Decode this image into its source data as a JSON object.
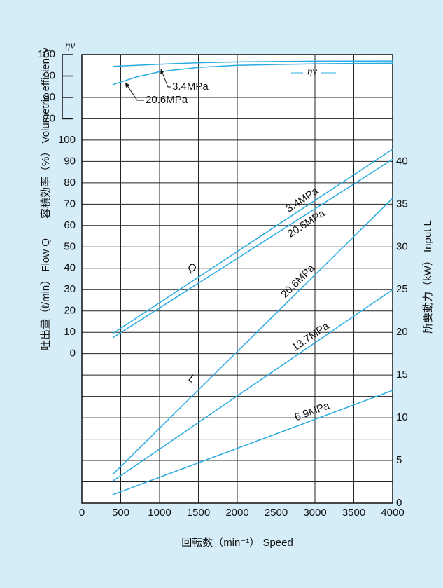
{
  "chart_data": {
    "type": "line",
    "x_label": "回転数（min⁻¹） Speed",
    "y_label": "吐出量（ℓ/min） Flow Q",
    "y2_label": "所要動力（kW） Input L",
    "y3_label": "容積効率（%） Volumetric efficiency",
    "annotations": [
      "ηv",
      "Q",
      "L"
    ],
    "xlim": [
      0,
      4000
    ],
    "xticks": [
      0,
      500,
      1000,
      1500,
      2000,
      2500,
      3000,
      3500,
      4000
    ],
    "ylim": [
      -70,
      140
    ],
    "yticks": [
      0,
      10,
      20,
      30,
      40,
      50,
      60,
      70,
      80,
      90,
      100
    ],
    "y2lim": [
      0,
      52.5
    ],
    "y2ticks": [
      0,
      5,
      10,
      15,
      20,
      25,
      30,
      35,
      40
    ],
    "y3lim": [
      -110,
      100
    ],
    "y3ticks": [
      70,
      80,
      90,
      100
    ],
    "grid": true,
    "series": [
      {
        "name": "3.4MPa",
        "color": "#29abe2",
        "axis": "y3",
        "x": [
          400,
          1000,
          1500,
          2000,
          3000,
          4000
        ],
        "values": [
          94.5,
          95.5,
          96.2,
          96.6,
          96.9,
          97
        ]
      },
      {
        "name": "20.6MPa",
        "color": "#29abe2",
        "axis": "y3",
        "x": [
          400,
          700,
          1000,
          1500,
          2000,
          3000,
          4000
        ],
        "values": [
          86,
          89.5,
          92,
          94,
          95,
          95.7,
          96
        ]
      },
      {
        "name": "3.4MPa",
        "color": "#29abe2",
        "axis": "y",
        "x": [
          400,
          4000
        ],
        "values": [
          9.5,
          95.7
        ]
      },
      {
        "name": "20.6MPa",
        "color": "#29abe2",
        "axis": "y",
        "x": [
          400,
          4000
        ],
        "values": [
          7.5,
          91
        ]
      },
      {
        "name": "20.6MPa",
        "color": "#29abe2",
        "axis": "y2",
        "x": [
          400,
          4000
        ],
        "values": [
          3.4,
          35.7
        ]
      },
      {
        "name": "13.7MPa",
        "color": "#29abe2",
        "axis": "y2",
        "x": [
          400,
          4000
        ],
        "values": [
          2.6,
          25
        ]
      },
      {
        "name": "6.9MPa",
        "color": "#29abe2",
        "axis": "y2",
        "x": [
          400,
          4000
        ],
        "values": [
          1.0,
          13.2
        ]
      }
    ]
  }
}
